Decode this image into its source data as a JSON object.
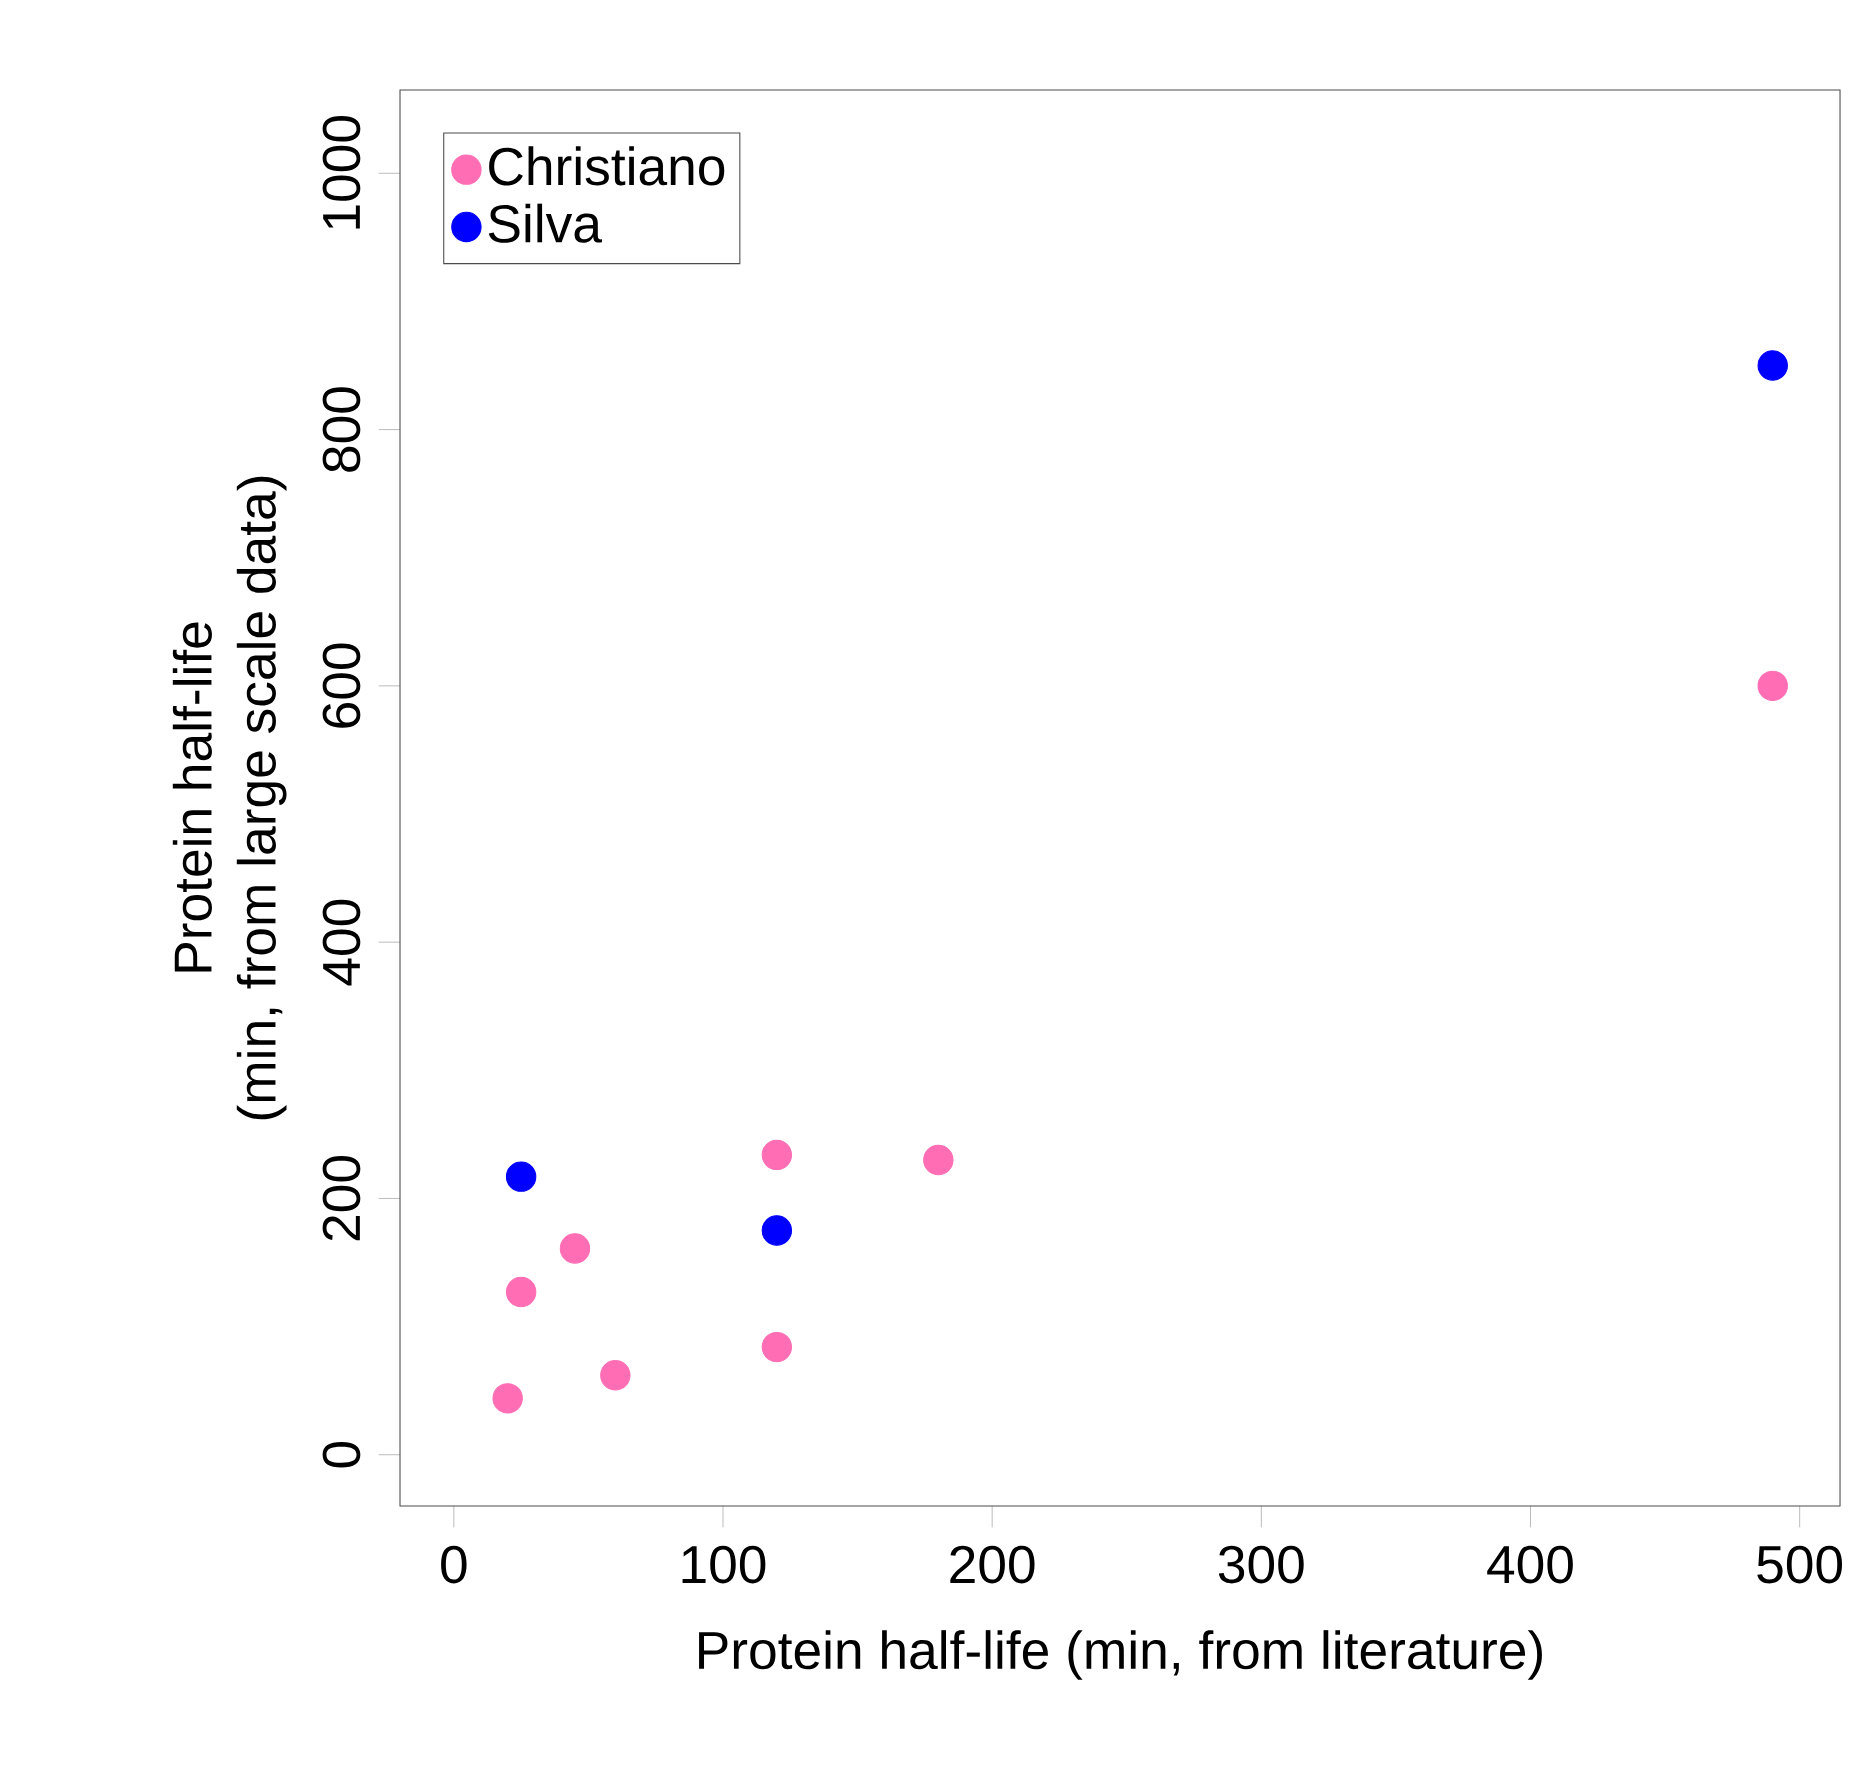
{
  "chart_data": {
    "type": "scatter",
    "xlabel": "Protein half-life (min, from literature)",
    "ylabel": "Protein half-life\n(min, from large scale data)",
    "xlim": [
      -20,
      515
    ],
    "ylim": [
      -40,
      1065
    ],
    "xticks": [
      0,
      100,
      200,
      300,
      400,
      500
    ],
    "yticks": [
      0,
      200,
      400,
      600,
      800,
      1000
    ],
    "legend": "top left",
    "marker": "circle",
    "grid": false,
    "series": [
      {
        "name": "Christiano",
        "color": "#ff6eb4",
        "x": [
          20,
          25,
          45,
          60,
          120,
          120,
          180,
          490
        ],
        "values": [
          44,
          127,
          161,
          62,
          84,
          234,
          230,
          600
        ]
      },
      {
        "name": "Silva",
        "color": "#0000ff",
        "x": [
          25,
          120,
          490
        ],
        "values": [
          217,
          175,
          850
        ]
      }
    ]
  }
}
